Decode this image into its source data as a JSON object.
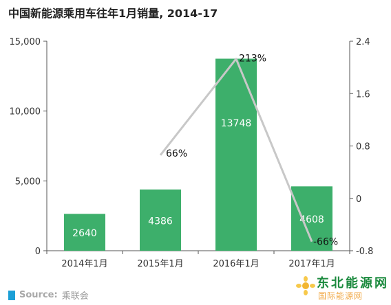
{
  "title": "中国新能源乘用车往年1月销量, 2014-17",
  "source": {
    "label": "Source:",
    "value": "乘联会"
  },
  "watermark": {
    "main": "东北能源网",
    "sub": "国际能源网"
  },
  "colors": {
    "bar": "#3daf6b",
    "line": "#c8c8c8",
    "axis": "#555555",
    "source_square": "#1b9fd6"
  },
  "chart_data": {
    "type": "bar",
    "categories": [
      "2014年1月",
      "2015年1月",
      "2016年1月",
      "2017年1月"
    ],
    "series": [
      {
        "type": "bar",
        "axis": "left",
        "values": [
          2640,
          4386,
          13748,
          4608
        ],
        "data_labels": [
          "2640",
          "4386",
          "13748",
          "4608"
        ]
      },
      {
        "type": "line",
        "axis": "right",
        "values": [
          null,
          0.66,
          2.13,
          -0.66
        ],
        "data_labels": [
          "",
          "66%",
          "213%",
          "-66%"
        ]
      }
    ],
    "y_left": {
      "ylim": [
        0,
        15000
      ],
      "ticks": [
        0,
        5000,
        10000,
        15000
      ],
      "tick_labels": [
        "0",
        "5,000",
        "10,000",
        "15,000"
      ]
    },
    "y_right": {
      "ylim": [
        -0.8,
        2.4
      ],
      "ticks": [
        -0.8,
        0,
        0.8,
        1.6,
        2.4
      ],
      "tick_labels": [
        "-0.8",
        "0",
        "0.8",
        "1.6",
        "2.4"
      ]
    },
    "grid": false,
    "legend": "none"
  }
}
